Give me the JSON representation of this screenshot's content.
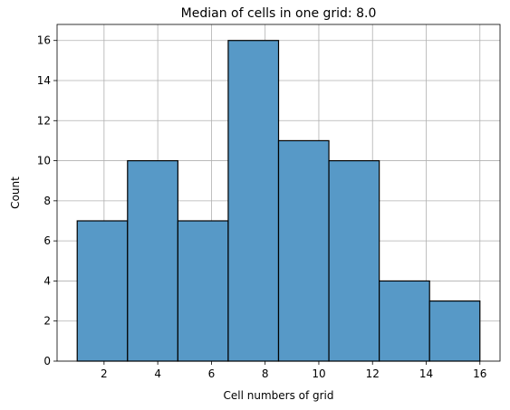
{
  "chart_data": {
    "type": "bar",
    "title": "Median of cells in one grid: 8.0",
    "xlabel": "Cell numbers of grid",
    "ylabel": "Count",
    "bins": [
      {
        "start": 1.0,
        "end": 2.875,
        "count": 7
      },
      {
        "start": 2.875,
        "end": 4.75,
        "count": 10
      },
      {
        "start": 4.75,
        "end": 6.625,
        "count": 7
      },
      {
        "start": 6.625,
        "end": 8.5,
        "count": 16
      },
      {
        "start": 8.5,
        "end": 10.375,
        "count": 11
      },
      {
        "start": 10.375,
        "end": 12.25,
        "count": 10
      },
      {
        "start": 12.25,
        "end": 14.125,
        "count": 4
      },
      {
        "start": 14.125,
        "end": 16.0,
        "count": 3
      }
    ],
    "xlim": [
      0.25,
      16.75
    ],
    "ylim": [
      0,
      16.8
    ],
    "xticks": [
      2,
      4,
      6,
      8,
      10,
      12,
      14,
      16
    ],
    "yticks": [
      0,
      2,
      4,
      6,
      8,
      10,
      12,
      14,
      16
    ],
    "grid": true,
    "bar_color": "#5799c7",
    "edge_color": "#000000"
  }
}
